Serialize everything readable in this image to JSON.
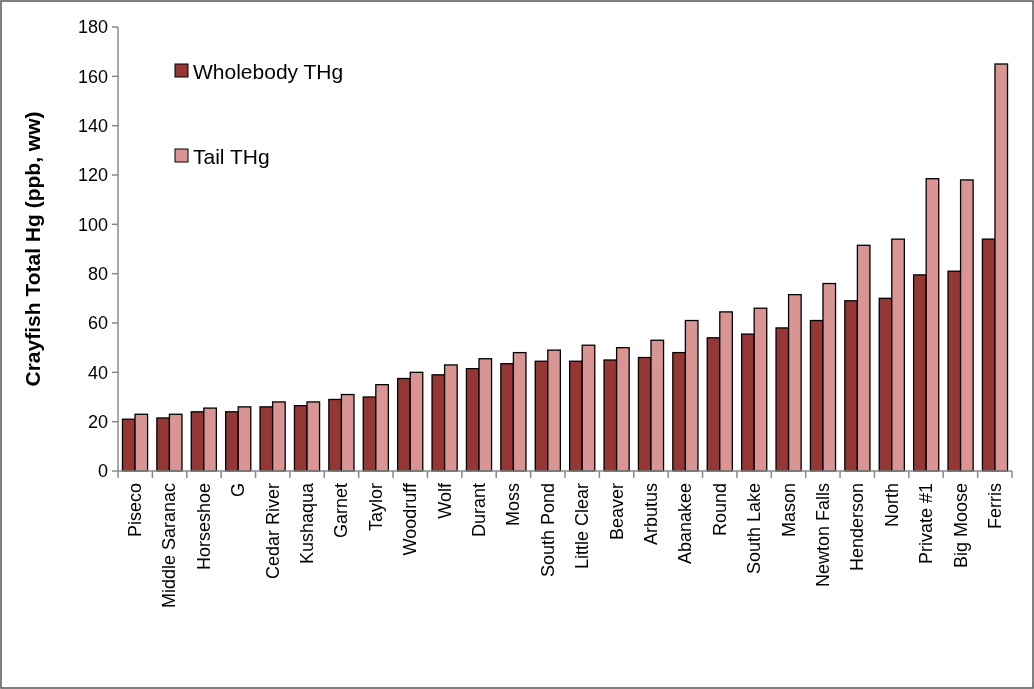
{
  "chart_data": {
    "type": "bar",
    "ylabel": "Crayfish Total Hg (ppb, ww)",
    "categories": [
      "Piseco",
      "Middle Saranac",
      "Horseshoe",
      "G",
      "Cedar River",
      "Kushaqua",
      "Garnet",
      "Taylor",
      "Woodruff",
      "Wolf",
      "Durant",
      "Moss",
      "South Pond",
      "Little Clear",
      "Beaver",
      "Arbutus",
      "Abanakee",
      "Round",
      "South Lake",
      "Mason",
      "Newton Falls",
      "Henderson",
      "North",
      "Private #1",
      "Big Moose",
      "Ferris"
    ],
    "series": [
      {
        "name": "Wholebody THg",
        "color": "#953735",
        "values": [
          21,
          21.5,
          24,
          24,
          26,
          26.5,
          29,
          30,
          37.5,
          39,
          41.5,
          43.5,
          44.5,
          44.5,
          45,
          46,
          48,
          54,
          55.5,
          58,
          61,
          69,
          70,
          79.5,
          81,
          94
        ]
      },
      {
        "name": "Tail THg",
        "color": "#d99594",
        "values": [
          23,
          23,
          25.5,
          26,
          28,
          28,
          31,
          35,
          40,
          43,
          45.5,
          48,
          49,
          51,
          50,
          53,
          61,
          64.5,
          66,
          71.5,
          76,
          91.5,
          94,
          118.5,
          118,
          165
        ]
      }
    ],
    "ylim": [
      0,
      180
    ],
    "yticks": [
      0,
      20,
      40,
      60,
      80,
      100,
      120,
      140,
      160,
      180
    ],
    "grid": false,
    "legend": "top left"
  }
}
